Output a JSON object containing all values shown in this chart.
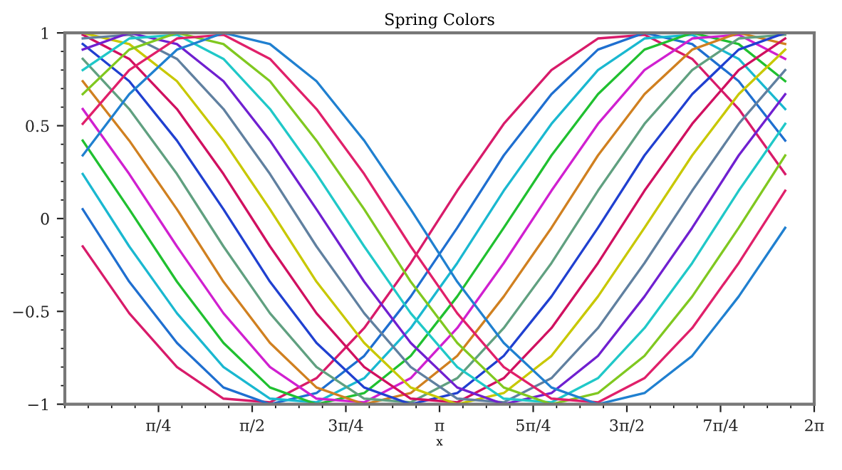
{
  "chart_data": {
    "type": "line",
    "title": "Spring Colors",
    "xlabel": "x",
    "x": [
      0.15,
      0.54,
      0.94,
      1.33,
      1.72,
      2.11,
      2.51,
      2.9,
      3.29,
      3.68,
      4.08,
      4.47,
      4.86,
      5.26,
      5.65,
      6.04
    ],
    "xlim": [
      0,
      6.2832
    ],
    "ylim": [
      -1,
      1
    ],
    "xticks": [
      {
        "value": 0.7854,
        "label": "π/4"
      },
      {
        "value": 1.5708,
        "label": "π/2"
      },
      {
        "value": 2.3562,
        "label": "3π/4"
      },
      {
        "value": 3.1416,
        "label": "π"
      },
      {
        "value": 3.927,
        "label": "5π/4"
      },
      {
        "value": 4.7124,
        "label": "3π/2"
      },
      {
        "value": 5.4978,
        "label": "7π/4"
      },
      {
        "value": 6.2832,
        "label": "2π"
      }
    ],
    "yticks": [
      {
        "value": -1,
        "label": "−1"
      },
      {
        "value": -0.5,
        "label": "−0.5"
      },
      0,
      0.5,
      1
    ],
    "grid": false,
    "legend": false,
    "marker": "none",
    "line_style": "solid",
    "series": [
      {
        "color": "#d81b6a",
        "values": [
          -0.15,
          -0.51,
          -0.8,
          -0.97,
          -0.99,
          -0.86,
          -0.59,
          -0.24,
          0.15,
          0.51,
          0.8,
          0.97,
          0.99,
          0.86,
          0.59,
          0.24
        ]
      },
      {
        "color": "#1f6fd0",
        "values": [
          0.05,
          -0.34,
          -0.67,
          -0.91,
          -1.0,
          -0.94,
          -0.74,
          -0.42,
          -0.05,
          0.34,
          0.67,
          0.91,
          1.0,
          0.94,
          0.74,
          0.42
        ]
      },
      {
        "color": "#1ab8d0",
        "values": [
          0.24,
          -0.15,
          -0.51,
          -0.8,
          -0.97,
          -0.99,
          -0.86,
          -0.59,
          -0.24,
          0.15,
          0.51,
          0.8,
          0.97,
          0.99,
          0.86,
          0.59
        ]
      },
      {
        "color": "#20c030",
        "values": [
          0.42,
          0.05,
          -0.34,
          -0.67,
          -0.91,
          -1.0,
          -0.94,
          -0.74,
          -0.42,
          -0.05,
          0.34,
          0.67,
          0.91,
          1.0,
          0.94,
          0.74
        ]
      },
      {
        "color": "#d020d0",
        "values": [
          0.59,
          0.24,
          -0.15,
          -0.51,
          -0.8,
          -0.97,
          -0.99,
          -0.86,
          -0.59,
          -0.24,
          0.15,
          0.51,
          0.8,
          0.97,
          0.99,
          0.86
        ]
      },
      {
        "color": "#d08020",
        "values": [
          0.74,
          0.42,
          0.05,
          -0.34,
          -0.67,
          -0.91,
          -1.0,
          -0.94,
          -0.74,
          -0.42,
          -0.05,
          0.34,
          0.67,
          0.91,
          1.0,
          0.94
        ]
      },
      {
        "color": "#60a080",
        "values": [
          0.86,
          0.59,
          0.24,
          -0.15,
          -0.51,
          -0.8,
          -0.97,
          -0.99,
          -0.86,
          -0.59,
          -0.24,
          0.15,
          0.51,
          0.8,
          0.97,
          0.99
        ]
      },
      {
        "color": "#2040d0",
        "values": [
          0.94,
          0.74,
          0.42,
          0.05,
          -0.34,
          -0.67,
          -0.91,
          -1.0,
          -0.94,
          -0.74,
          -0.42,
          -0.05,
          0.34,
          0.67,
          0.91,
          1.0
        ]
      },
      {
        "color": "#d01060",
        "values": [
          0.99,
          0.86,
          0.59,
          0.24,
          -0.15,
          -0.51,
          -0.8,
          -0.97,
          -0.99,
          -0.86,
          -0.59,
          -0.24,
          0.15,
          0.51,
          0.8,
          0.97
        ]
      },
      {
        "color": "#c8c800",
        "values": [
          1.0,
          0.94,
          0.74,
          0.42,
          0.05,
          -0.34,
          -0.67,
          -0.91,
          -1.0,
          -0.94,
          -0.74,
          -0.42,
          -0.05,
          0.34,
          0.67,
          0.91
        ]
      },
      {
        "color": "#6080a0",
        "values": [
          0.97,
          0.99,
          0.86,
          0.59,
          0.24,
          -0.15,
          -0.51,
          -0.8,
          -0.97,
          -0.99,
          -0.86,
          -0.59,
          -0.24,
          0.15,
          0.51,
          0.8
        ]
      },
      {
        "color": "#7020d0",
        "values": [
          0.91,
          1.0,
          0.94,
          0.74,
          0.42,
          0.05,
          -0.34,
          -0.67,
          -0.91,
          -1.0,
          -0.94,
          -0.74,
          -0.42,
          -0.05,
          0.34,
          0.67
        ]
      },
      {
        "color": "#20c8c8",
        "values": [
          0.8,
          0.97,
          0.99,
          0.86,
          0.59,
          0.24,
          -0.15,
          -0.51,
          -0.8,
          -0.97,
          -0.99,
          -0.86,
          -0.59,
          -0.24,
          0.15,
          0.51
        ]
      },
      {
        "color": "#80c820",
        "values": [
          0.67,
          0.91,
          1.0,
          0.94,
          0.74,
          0.42,
          0.05,
          -0.34,
          -0.67,
          -0.91,
          -1.0,
          -0.94,
          -0.74,
          -0.42,
          -0.05,
          0.34
        ]
      },
      {
        "color": "#e0206a",
        "values": [
          0.51,
          0.8,
          0.97,
          0.99,
          0.86,
          0.59,
          0.24,
          -0.15,
          -0.51,
          -0.8,
          -0.97,
          -0.99,
          -0.86,
          -0.59,
          -0.24,
          0.15
        ]
      },
      {
        "color": "#2080d0",
        "values": [
          0.34,
          0.67,
          0.91,
          1.0,
          0.94,
          0.74,
          0.42,
          0.05,
          -0.34,
          -0.67,
          -0.91,
          -1.0,
          -0.94,
          -0.74,
          -0.42,
          -0.05
        ]
      }
    ]
  }
}
